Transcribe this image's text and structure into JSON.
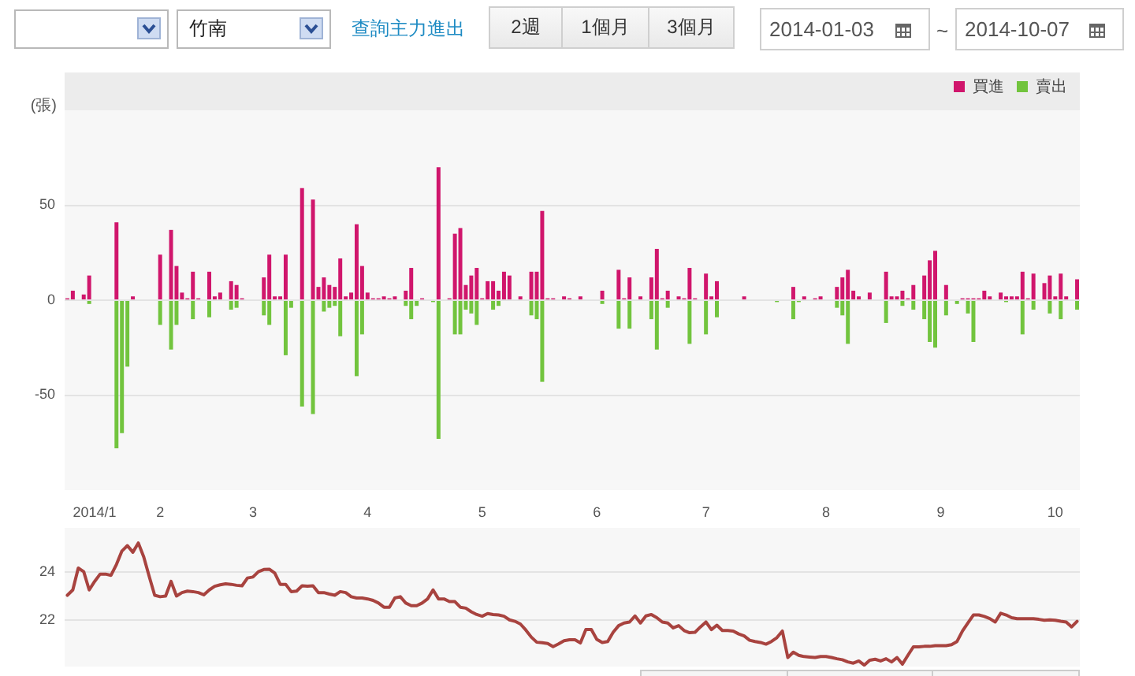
{
  "chart_data": [
    {
      "type": "bar",
      "ylabel": "(張)",
      "annotations": [
        "竹南",
        "查詢主力進出",
        "2週",
        "1個月",
        "3個月",
        "2014-01-03",
        "~",
        "2014-10-07"
      ],
      "categories": [
        null,
        null,
        null,
        null,
        null,
        "2014/1",
        null,
        null,
        null,
        null,
        null,
        null,
        null,
        null,
        null,
        null,
        null,
        "2",
        null,
        null,
        null,
        null,
        null,
        null,
        null,
        null,
        null,
        null,
        null,
        null,
        null,
        null,
        null,
        null,
        "3",
        null,
        null,
        null,
        null,
        null,
        null,
        null,
        null,
        null,
        null,
        null,
        null,
        null,
        null,
        null,
        null,
        null,
        null,
        null,
        null,
        "4",
        null,
        null,
        null,
        null,
        null,
        null,
        null,
        null,
        null,
        null,
        null,
        null,
        null,
        null,
        null,
        null,
        null,
        null,
        null,
        null,
        "5",
        null,
        null,
        null,
        null,
        null,
        null,
        null,
        null,
        null,
        null,
        null,
        null,
        null,
        null,
        null,
        null,
        null,
        null,
        null,
        null,
        "6",
        null,
        null,
        null,
        null,
        null,
        null,
        null,
        null,
        null,
        null,
        null,
        null,
        null,
        null,
        null,
        null,
        null,
        null,
        null,
        "7",
        null,
        null,
        null,
        null,
        null,
        null,
        null,
        null,
        null,
        null,
        null,
        null,
        null,
        null,
        null,
        null,
        null,
        null,
        null,
        null,
        null,
        "8",
        null,
        null,
        null,
        null,
        null,
        null,
        null,
        null,
        null,
        null,
        null,
        null,
        null,
        null,
        null,
        null,
        null,
        null,
        null,
        null,
        "9",
        null,
        null,
        null,
        null,
        null,
        null,
        null,
        null,
        null,
        null,
        null,
        null,
        null,
        null,
        null,
        null,
        null,
        null,
        null,
        null,
        "10",
        null,
        null,
        null,
        null
      ],
      "series": [
        {
          "name": "買進",
          "color": "#d0166c",
          "values": [
            1,
            5,
            null,
            3,
            13,
            null,
            null,
            null,
            null,
            41,
            null,
            null,
            2,
            null,
            null,
            null,
            null,
            24,
            null,
            37,
            18,
            4,
            1,
            15,
            1,
            null,
            15,
            2,
            4,
            null,
            10,
            8,
            1,
            null,
            null,
            null,
            12,
            24,
            2,
            2,
            24,
            null,
            null,
            59,
            null,
            53,
            7,
            12,
            8,
            7,
            22,
            2,
            4,
            40,
            18,
            4,
            1,
            1,
            2,
            1,
            2,
            null,
            5,
            17,
            null,
            1,
            null,
            null,
            70,
            null,
            1,
            35,
            38,
            8,
            13,
            17,
            1,
            10,
            10,
            5,
            15,
            13,
            null,
            2,
            null,
            15,
            15,
            47,
            1,
            1,
            null,
            2,
            1,
            null,
            2,
            null,
            null,
            null,
            5,
            null,
            null,
            16,
            1,
            12,
            null,
            2,
            null,
            12,
            27,
            1,
            5,
            null,
            2,
            1,
            17,
            1,
            null,
            14,
            2,
            10,
            null,
            null,
            null,
            null,
            2,
            null,
            null,
            null,
            null,
            null,
            null,
            null,
            null,
            7,
            null,
            2,
            null,
            1,
            2,
            null,
            null,
            7,
            12,
            16,
            5,
            2,
            null,
            4,
            null,
            null,
            15,
            2,
            2,
            5,
            1,
            8,
            null,
            13,
            21,
            26,
            null,
            8,
            null,
            null,
            1,
            1,
            1,
            1,
            5,
            2,
            null,
            4,
            2,
            2,
            2,
            15,
            1,
            14,
            null,
            9,
            13,
            2,
            14,
            2,
            null,
            11
          ]
        },
        {
          "name": "賣出",
          "color": "#72c43e",
          "values": [
            null,
            null,
            null,
            null,
            -2,
            null,
            null,
            null,
            null,
            -78,
            -70,
            -35,
            null,
            null,
            null,
            null,
            null,
            -13,
            null,
            -26,
            -13,
            null,
            null,
            -10,
            null,
            null,
            -9,
            null,
            null,
            null,
            -5,
            -4,
            null,
            null,
            null,
            null,
            -8,
            -13,
            null,
            null,
            -29,
            -4,
            null,
            -56,
            null,
            -60,
            null,
            -6,
            -4,
            -3,
            -19,
            null,
            null,
            -40,
            -18,
            null,
            null,
            null,
            null,
            null,
            null,
            null,
            -3,
            -10,
            -3,
            null,
            null,
            -1,
            -73,
            null,
            null,
            -18,
            -18,
            -5,
            -7,
            -13,
            null,
            null,
            -5,
            -3,
            null,
            null,
            null,
            null,
            null,
            -8,
            -10,
            -43,
            null,
            null,
            null,
            null,
            null,
            null,
            null,
            null,
            null,
            null,
            -2,
            null,
            null,
            -15,
            null,
            -15,
            null,
            null,
            null,
            -10,
            -26,
            null,
            -4,
            null,
            null,
            null,
            -23,
            null,
            null,
            -18,
            null,
            -9,
            null,
            null,
            null,
            null,
            null,
            null,
            null,
            null,
            null,
            null,
            -1,
            null,
            null,
            -10,
            -1,
            null,
            null,
            null,
            null,
            null,
            null,
            -4,
            -8,
            -23,
            null,
            null,
            null,
            null,
            null,
            null,
            -12,
            null,
            null,
            -3,
            null,
            -5,
            null,
            -10,
            -22,
            -25,
            null,
            -8,
            null,
            -2,
            null,
            -7,
            -22,
            null,
            null,
            null,
            null,
            null,
            -1,
            null,
            null,
            -18,
            null,
            -5,
            null,
            null,
            -7,
            null,
            -10,
            null,
            null,
            -5
          ]
        }
      ],
      "ylim": [
        -100,
        100
      ],
      "yticks": [
        -50,
        0,
        50
      ],
      "grid": "y",
      "legend": "top right"
    },
    {
      "type": "line",
      "categories": [
        null,
        null,
        null,
        null,
        null,
        "2014/1",
        null,
        null,
        null,
        null,
        null,
        null,
        null,
        null,
        null,
        null,
        null,
        "2",
        null,
        null,
        null,
        null,
        null,
        null,
        null,
        null,
        null,
        null,
        null,
        null,
        null,
        null,
        null,
        null,
        "3",
        null,
        null,
        null,
        null,
        null,
        null,
        null,
        null,
        null,
        null,
        null,
        null,
        null,
        null,
        null,
        null,
        null,
        null,
        null,
        null,
        "4",
        null,
        null,
        null,
        null,
        null,
        null,
        null,
        null,
        null,
        null,
        null,
        null,
        null,
        null,
        null,
        null,
        null,
        null,
        null,
        null,
        "5",
        null,
        null,
        null,
        null,
        null,
        null,
        null,
        null,
        null,
        null,
        null,
        null,
        null,
        null,
        null,
        null,
        null,
        null,
        null,
        null,
        "6",
        null,
        null,
        null,
        null,
        null,
        null,
        null,
        null,
        null,
        null,
        null,
        null,
        null,
        null,
        null,
        null,
        null,
        null,
        null,
        "7",
        null,
        null,
        null,
        null,
        null,
        null,
        null,
        null,
        null,
        null,
        null,
        null,
        null,
        null,
        null,
        null,
        null,
        null,
        null,
        null,
        null,
        "8",
        null,
        null,
        null,
        null,
        null,
        null,
        null,
        null,
        null,
        null,
        null,
        null,
        null,
        null,
        null,
        null,
        null,
        null,
        null,
        null,
        "9",
        null,
        null,
        null,
        null,
        null,
        null,
        null,
        null,
        null,
        null,
        null,
        null,
        null,
        null,
        null,
        null,
        null,
        null,
        null,
        null,
        "10",
        null,
        null,
        null,
        null
      ],
      "series": [
        {
          "color": "#a8433f",
          "values": [
            23.03,
            23.25,
            24.15,
            24.0,
            23.25,
            23.6,
            23.9,
            23.9,
            23.85,
            24.3,
            24.85,
            25.07,
            24.8,
            25.18,
            24.6,
            23.8,
            23.03,
            22.97,
            23.0,
            23.6,
            23.0,
            23.14,
            23.2,
            23.18,
            23.14,
            23.05,
            23.25,
            23.4,
            23.46,
            23.5,
            23.48,
            23.44,
            23.42,
            23.74,
            23.78,
            24.0,
            24.09,
            24.1,
            23.94,
            23.48,
            23.48,
            23.18,
            23.2,
            23.42,
            23.4,
            23.42,
            23.14,
            23.14,
            23.08,
            23.03,
            23.18,
            23.14,
            22.97,
            22.92,
            22.92,
            22.88,
            22.82,
            22.71,
            22.54,
            22.54,
            22.92,
            22.97,
            22.71,
            22.6,
            22.6,
            22.71,
            22.88,
            23.25,
            22.88,
            22.88,
            22.77,
            22.77,
            22.54,
            22.5,
            22.35,
            22.24,
            22.17,
            22.28,
            22.24,
            22.22,
            22.17,
            22.02,
            21.96,
            21.85,
            21.6,
            21.31,
            21.1,
            21.08,
            21.05,
            20.92,
            21.03,
            21.16,
            21.2,
            21.2,
            21.07,
            21.62,
            21.62,
            21.22,
            21.09,
            21.13,
            21.51,
            21.78,
            21.89,
            21.93,
            22.18,
            21.89,
            22.18,
            22.24,
            22.11,
            21.93,
            21.89,
            21.69,
            21.78,
            21.58,
            21.49,
            21.51,
            21.73,
            21.93,
            21.62,
            21.8,
            21.58,
            21.58,
            21.56,
            21.44,
            21.36,
            21.18,
            21.13,
            21.09,
            21.02,
            21.13,
            21.29,
            21.56,
            20.47,
            20.69,
            20.56,
            20.51,
            20.49,
            20.47,
            20.51,
            20.51,
            20.47,
            20.42,
            20.38,
            20.29,
            20.24,
            20.33,
            20.16,
            20.36,
            20.4,
            20.33,
            20.42,
            20.29,
            20.47,
            20.2,
            20.56,
            20.91,
            20.91,
            20.93,
            20.93,
            20.96,
            20.96,
            20.96,
            21.0,
            21.13,
            21.56,
            21.89,
            22.22,
            22.22,
            22.16,
            22.07,
            21.93,
            22.29,
            22.22,
            22.11,
            22.07,
            22.07,
            22.07,
            22.07,
            22.04,
            22.0,
            22.02,
            22.0,
            21.96,
            21.93,
            21.73,
            21.96
          ]
        }
      ],
      "ylim": [
        20.1,
        25.8
      ],
      "yticks": [
        22,
        24
      ],
      "grid": "y",
      "tick_labels": "y",
      "marker": "none"
    }
  ]
}
